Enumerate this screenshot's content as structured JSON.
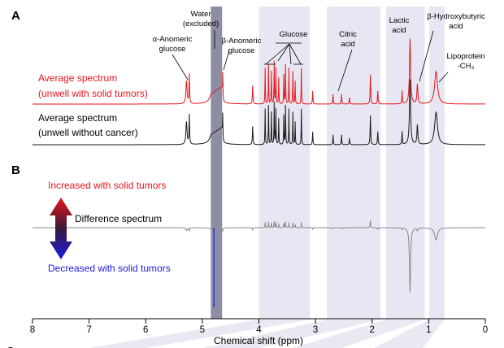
{
  "chart_data": {
    "type": "line",
    "panels": [
      "A",
      "B"
    ],
    "xlabel": "Chemical shift (ppm)",
    "xlim": [
      8,
      0
    ],
    "x_reversed": true,
    "xticks": [
      8,
      7,
      6,
      5,
      4,
      3,
      2,
      1,
      0
    ],
    "series": [
      {
        "name_lines": [
          "Average spectrum",
          "(unwell with solid tumors)"
        ],
        "color": "#e8141b",
        "panel": "A"
      },
      {
        "name_lines": [
          "Average spectrum",
          "(unwell without cancer)"
        ],
        "color": "#1a1a1a",
        "panel": "A"
      },
      {
        "name": "Difference spectrum",
        "panel": "B",
        "color_neutral": "#888888",
        "color_up": "#e8141b",
        "color_down": "#1a1ae0"
      }
    ],
    "shaded_regions_ppm": [
      {
        "from": 4.0,
        "to": 3.1,
        "color": "#e6e7f2"
      },
      {
        "from": 2.8,
        "to": 1.85,
        "color": "#e6e7f2"
      },
      {
        "from": 1.75,
        "to": 1.07,
        "color": "#e6e7f2"
      },
      {
        "from": 0.99,
        "to": 0.72,
        "color": "#e6e7f2"
      },
      {
        "from": 4.85,
        "to": 4.65,
        "color": "#8d8ea6",
        "note": "excluded"
      }
    ],
    "peaks_ppm": {
      "alpha_glucose": 5.23,
      "beta_glucose": 4.64,
      "water": 4.78,
      "glucose": [
        3.89,
        3.83,
        3.73,
        3.7,
        3.53,
        3.47,
        3.4,
        3.25
      ],
      "citric_acid": [
        2.69,
        2.54
      ],
      "lactic_acid": 1.33,
      "beta_hydroxybutyric_acid": 1.2,
      "lipoprotein_ch3": 0.87
    },
    "annotations": [
      {
        "id": "water",
        "lines": [
          "Water",
          "(excluded)"
        ]
      },
      {
        "id": "alpha",
        "lines": [
          "α-Anomeric",
          "glucose"
        ]
      },
      {
        "id": "beta",
        "lines": [
          "β-Anomeric",
          "glucose"
        ]
      },
      {
        "id": "glucose",
        "lines": [
          "Glucose"
        ]
      },
      {
        "id": "citric",
        "lines": [
          "Citric",
          "acid"
        ]
      },
      {
        "id": "lactic",
        "lines": [
          "Lactic",
          "acid"
        ]
      },
      {
        "id": "bhb",
        "lines": [
          "β-Hydroxybutyric",
          "acid"
        ]
      },
      {
        "id": "lipo",
        "lines": [
          "Lipoprotein",
          "-CH₃"
        ]
      }
    ],
    "legend_b": {
      "increased": "Increased with solid tumors",
      "decreased": "Decreased with solid tumors"
    },
    "next_panel_partial": "C"
  }
}
